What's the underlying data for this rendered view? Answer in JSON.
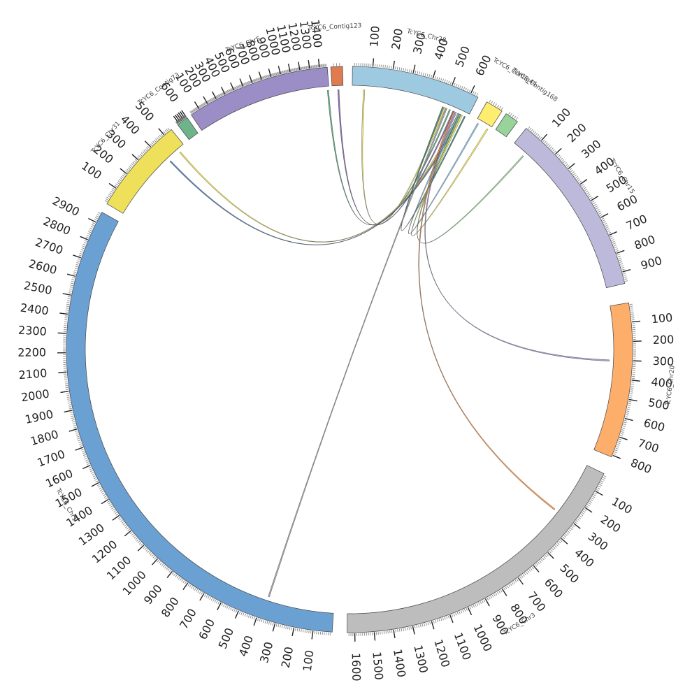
{
  "chart_data": {
    "type": "circos",
    "unit": "kb",
    "segments": [
      {
        "id": "TcYC6_Contig123",
        "label": "TcYC6_Contig123",
        "length": 40,
        "color": "#E07B4F",
        "ticks": []
      },
      {
        "id": "TcYC6_Chr28",
        "label": "TcYC6_Chr28",
        "length": 640,
        "color": "#9ECAE1",
        "ticks": [
          "100",
          "200",
          "300",
          "400",
          "500",
          "600"
        ]
      },
      {
        "id": "TcYC6_Contig44",
        "label": "TcYC6_Contig44",
        "length": 75,
        "color": "#FFED6F",
        "ticks": []
      },
      {
        "id": "TcYC6_Contig168",
        "label": "TcYC6_Contig168",
        "length": 60,
        "color": "#98D49A",
        "ticks": []
      },
      {
        "id": "TcYC6_Chr15",
        "label": "TcYC6_Chr15",
        "length": 960,
        "color": "#BCB9DA",
        "ticks": [
          "100",
          "200",
          "300",
          "400",
          "500",
          "600",
          "700",
          "800",
          "900"
        ]
      },
      {
        "id": "TcYC6_Chr20",
        "label": "TcYC6_Chr20",
        "length": 810,
        "color": "#FDAE6B",
        "ticks": [
          "100",
          "200",
          "300",
          "400",
          "500",
          "600",
          "700",
          "800"
        ]
      },
      {
        "id": "TcYC6_Chr3",
        "label": "TcYC6_Chr3",
        "length": 1640,
        "color": "#BDBDBD",
        "ticks": [
          "100",
          "200",
          "300",
          "400",
          "500",
          "600",
          "700",
          "800",
          "900",
          "1000",
          "1100",
          "1200",
          "1300",
          "1400",
          "1500",
          "1600"
        ]
      },
      {
        "id": "TcYC6_Chr1",
        "label": "TcYC6_Chr1",
        "length": 2960,
        "color": "#6BA0D2",
        "ticks": [
          "100",
          "200",
          "300",
          "400",
          "500",
          "600",
          "700",
          "800",
          "900",
          "1000",
          "1100",
          "1200",
          "1300",
          "1400",
          "1500",
          "1600",
          "1700",
          "1800",
          "1900",
          "2000",
          "2100",
          "2200",
          "2300",
          "2400",
          "2500",
          "2600",
          "2700",
          "2800",
          "2900"
        ]
      },
      {
        "id": "TcYC6_Chr31",
        "label": "TcYC6_Chr31",
        "length": 550,
        "color": "#EEE05A",
        "ticks": [
          "100",
          "200",
          "300",
          "400",
          "500"
        ]
      },
      {
        "id": "TcYC6_Contig73",
        "label": "TcYC6_Contig73",
        "length": 620,
        "color": "#6DB48B",
        "ticks": [
          "600"
        ],
        "tick_positions": [
          600
        ]
      },
      {
        "id": "TcYC6_Chr5",
        "label": "TcYC6_Chr5",
        "length": 1480,
        "color": "#9B8DC6",
        "ticks": [
          "100",
          "200",
          "300",
          "400",
          "500",
          "600",
          "700",
          "800",
          "900",
          "1000",
          "1100",
          "1200",
          "1300",
          "1400"
        ]
      }
    ],
    "links": [
      {
        "from": "TcYC6_Chr5",
        "from_pos": 1460,
        "to": "TcYC6_Chr28",
        "to_pos": 540,
        "color": "#4FA373"
      },
      {
        "from": "TcYC6_Contig123",
        "from_pos": 20,
        "to": "TcYC6_Chr28",
        "to_pos": 560,
        "color": "#7C5BA6"
      },
      {
        "from": "TcYC6_Chr28",
        "from_pos": 60,
        "to": "TcYC6_Chr28",
        "to_pos": 510,
        "color": "#F0E050"
      },
      {
        "from": "TcYC6_Chr31",
        "from_pos": 500,
        "to": "TcYC6_Chr28",
        "to_pos": 590,
        "color": "#E6D840"
      },
      {
        "from": "TcYC6_Chr31",
        "from_pos": 420,
        "to": "TcYC6_Chr28",
        "to_pos": 600,
        "color": "#3F6FA8"
      },
      {
        "from": "TcYC6_Chr28",
        "from_pos": 620,
        "to": "TcYC6_Chr28",
        "to_pos": 500,
        "color": "#2E7D6B"
      },
      {
        "from": "TcYC6_Contig44",
        "from_pos": 10,
        "to": "TcYC6_Chr28",
        "to_pos": 590,
        "color": "#7FB8E0"
      },
      {
        "from": "TcYC6_Contig44",
        "from_pos": 60,
        "to": "TcYC6_Chr28",
        "to_pos": 610,
        "color": "#F5E94A"
      },
      {
        "from": "TcYC6_Chr15",
        "from_pos": 80,
        "to": "TcYC6_Chr28",
        "to_pos": 600,
        "color": "#8CCB8A"
      },
      {
        "from": "TcYC6_Chr20",
        "from_pos": 300,
        "to": "TcYC6_Chr28",
        "to_pos": 575,
        "color": "#9A8FCB"
      },
      {
        "from": "TcYC6_Chr3",
        "from_pos": 300,
        "to": "TcYC6_Chr28",
        "to_pos": 565,
        "color": "#F08A3A"
      },
      {
        "from": "TcYC6_Chr1",
        "from_pos": 370,
        "to": "TcYC6_Chr28",
        "to_pos": 520,
        "color": "#9A9A9A"
      }
    ]
  }
}
